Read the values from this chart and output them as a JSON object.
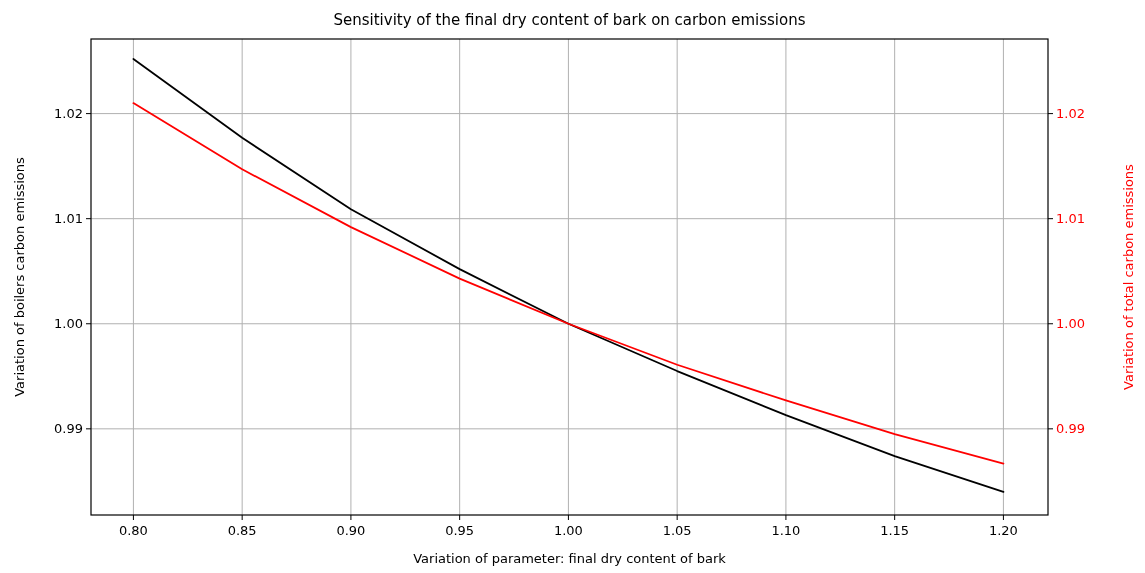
{
  "chart_data": {
    "type": "line",
    "title": "Sensitivity of the final dry content of bark on carbon emissions",
    "xlabel": "Variation of parameter: final dry content of bark",
    "ylabel": "Variation of boilers carbon emissions",
    "y2label": "Variation of total carbon emissions",
    "x": [
      0.8,
      0.85,
      0.9,
      0.95,
      1.0,
      1.05,
      1.1,
      1.15,
      1.2
    ],
    "series": [
      {
        "color": "#000000",
        "values": [
          1.0252,
          1.0177,
          1.0109,
          1.0052,
          1.0,
          0.9955,
          0.9913,
          0.9874,
          0.984
        ]
      },
      {
        "color": "#ff0000",
        "axis": "y2",
        "values": [
          1.021,
          1.0147,
          1.0092,
          1.0043,
          1.0,
          0.9961,
          0.9927,
          0.9895,
          0.9867
        ]
      }
    ],
    "xlim": [
      0.7805,
      1.2205
    ],
    "xticks": [
      {
        "value": 0.8,
        "label": "0.80"
      },
      0.85,
      {
        "value": 0.9,
        "label": "0.90"
      },
      0.95,
      {
        "value": 1.0,
        "label": "1.00"
      },
      1.05,
      {
        "value": 1.1,
        "label": "1.10"
      },
      1.15,
      {
        "value": 1.2,
        "label": "1.20"
      }
    ],
    "ylim": [
      0.9818,
      1.0271
    ],
    "yticks": [
      0.99,
      {
        "value": 1.0,
        "label": "1.00"
      },
      1.01,
      1.02
    ],
    "y2lim": [
      0.9818,
      1.0271
    ],
    "y2ticks": [
      0.99,
      {
        "value": 1.0,
        "label": "1.00"
      },
      1.01,
      1.02
    ],
    "grid": true,
    "marker": "none",
    "line_style": "solid"
  }
}
